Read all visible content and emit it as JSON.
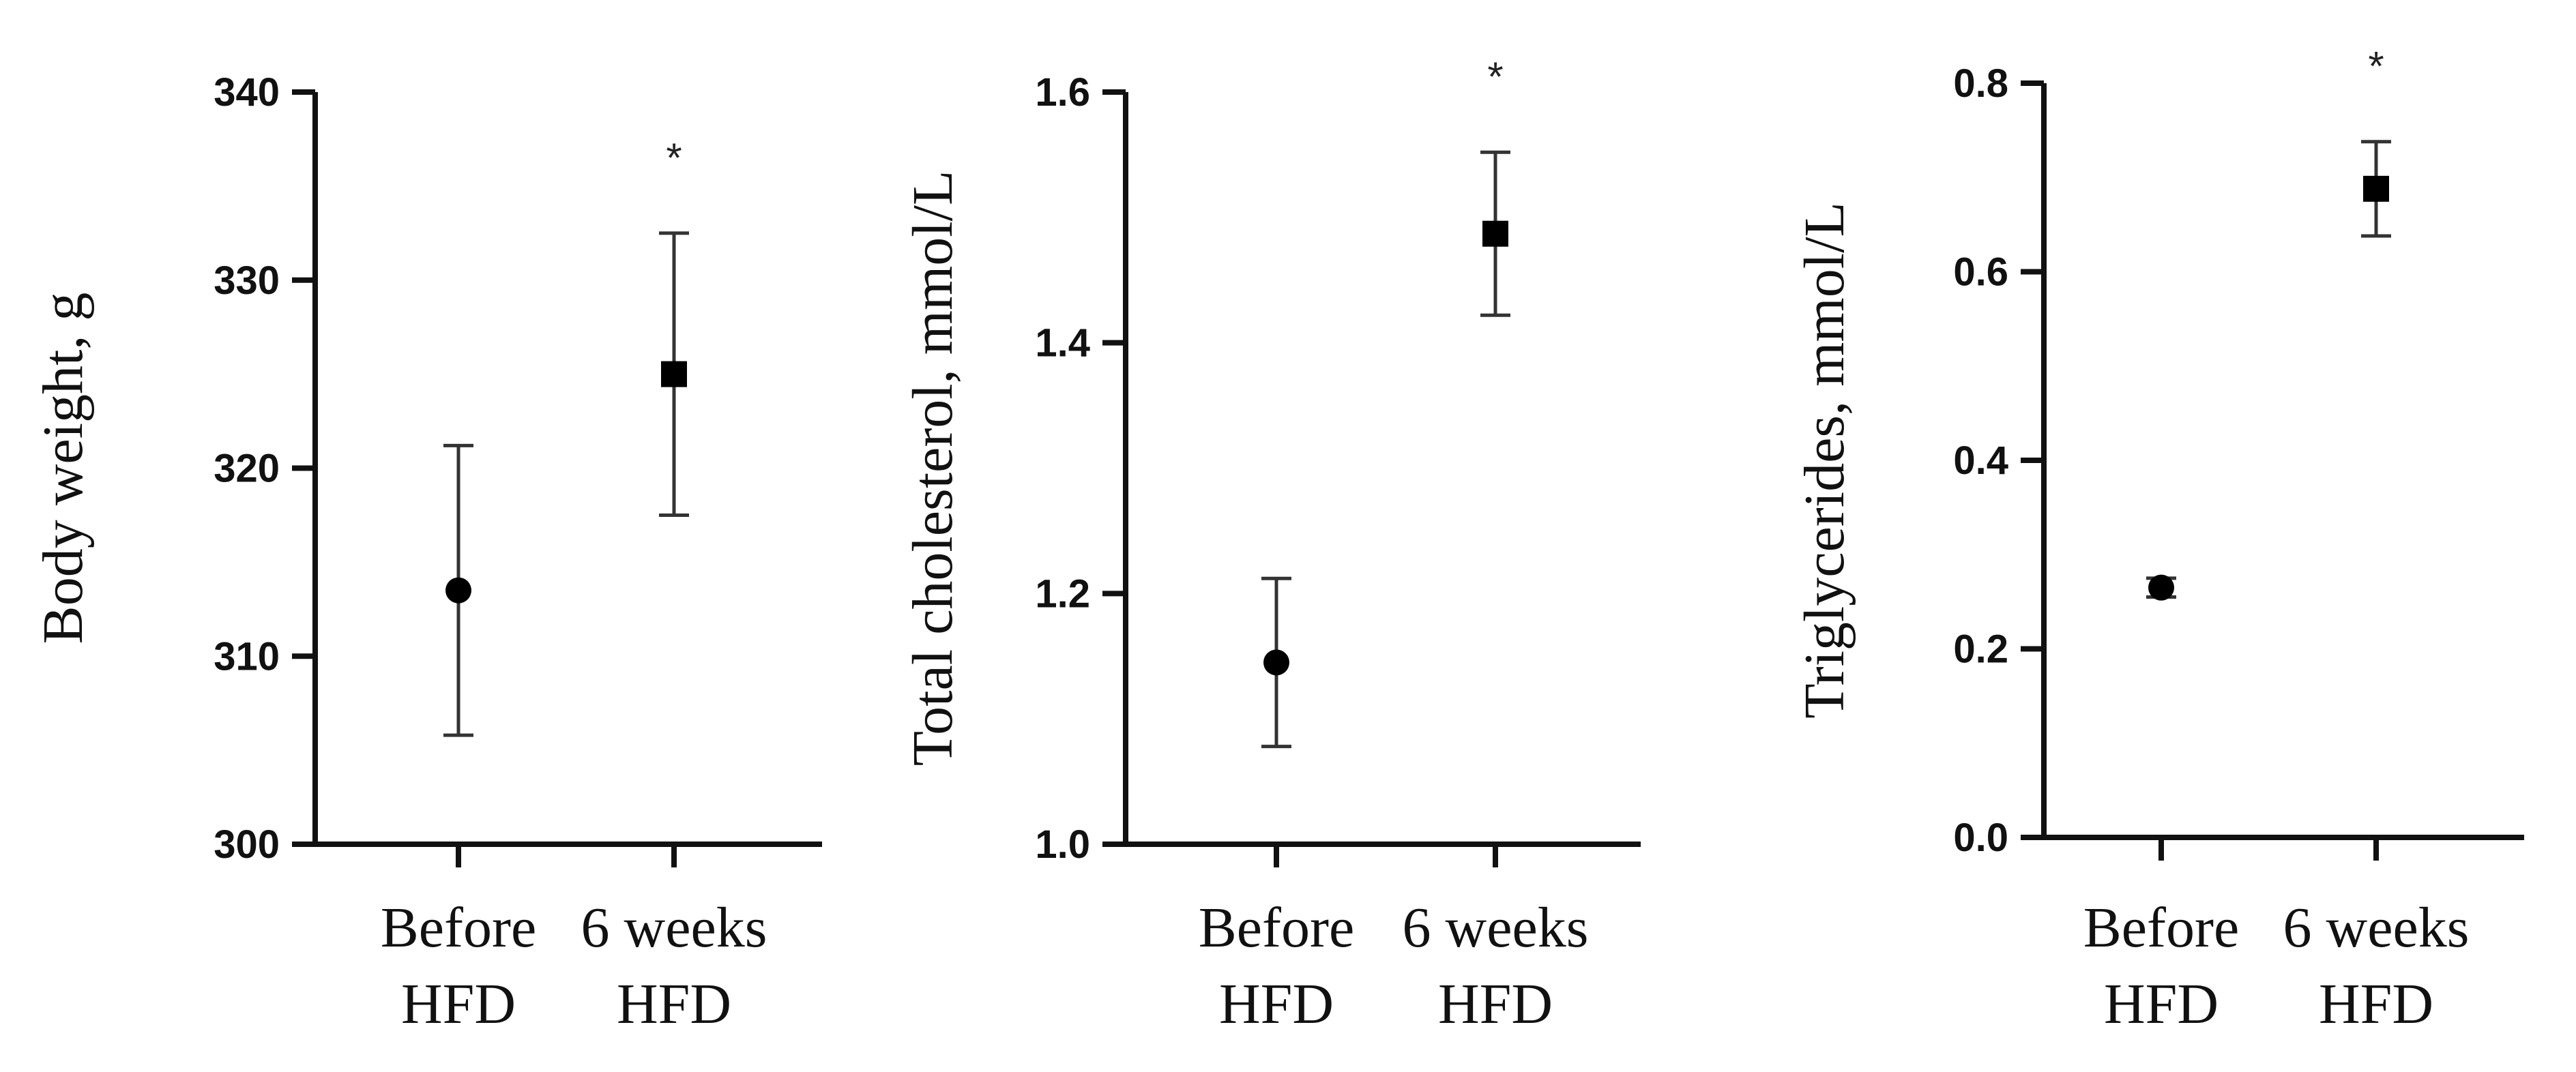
{
  "chart_data": [
    {
      "type": "scatter",
      "ylabel": "Body weight, g",
      "xlabel": "",
      "categories": [
        "Before HFD",
        "6 weeks HFD"
      ],
      "category_lines": [
        [
          "Before",
          "HFD"
        ],
        [
          "6 weeks",
          "HFD"
        ]
      ],
      "ylim": [
        300,
        340
      ],
      "yticks": [
        300,
        310,
        320,
        330,
        340
      ],
      "tick_labels": [
        "300",
        "310",
        "320",
        "330",
        "340"
      ],
      "values": [
        313.5,
        325.0
      ],
      "errors": [
        7.7,
        7.5
      ],
      "markers": [
        "circle",
        "square"
      ],
      "significance": [
        "",
        "*"
      ],
      "grid": false
    },
    {
      "type": "scatter",
      "ylabel": "Total cholesterol, mmol/L",
      "xlabel": "",
      "categories": [
        "Before HFD",
        "6 weeks HFD"
      ],
      "category_lines": [
        [
          "Before",
          "HFD"
        ],
        [
          "6 weeks",
          "HFD"
        ]
      ],
      "ylim": [
        1.0,
        1.6
      ],
      "yticks": [
        1.0,
        1.2,
        1.4,
        1.6
      ],
      "tick_labels": [
        "1.0",
        "1.2",
        "1.4",
        "1.6"
      ],
      "values": [
        1.145,
        1.487
      ],
      "errors": [
        0.067,
        0.065
      ],
      "markers": [
        "circle",
        "square"
      ],
      "significance": [
        "",
        "*"
      ],
      "grid": false
    },
    {
      "type": "scatter",
      "ylabel": "Triglycerides, mmol/L",
      "xlabel": "",
      "categories": [
        "Before HFD",
        "6 weeks HFD"
      ],
      "category_lines": [
        [
          "Before",
          "HFD"
        ],
        [
          "6 weeks",
          "HFD"
        ]
      ],
      "ylim": [
        0.0,
        0.8
      ],
      "yticks": [
        0.0,
        0.2,
        0.4,
        0.6,
        0.8
      ],
      "tick_labels": [
        "0.0",
        "0.2",
        "0.4",
        "0.6",
        "0.8"
      ],
      "values": [
        0.265,
        0.688
      ],
      "errors": [
        0.01,
        0.05
      ],
      "markers": [
        "circle",
        "square"
      ],
      "significance": [
        "",
        "*"
      ],
      "grid": false
    }
  ]
}
